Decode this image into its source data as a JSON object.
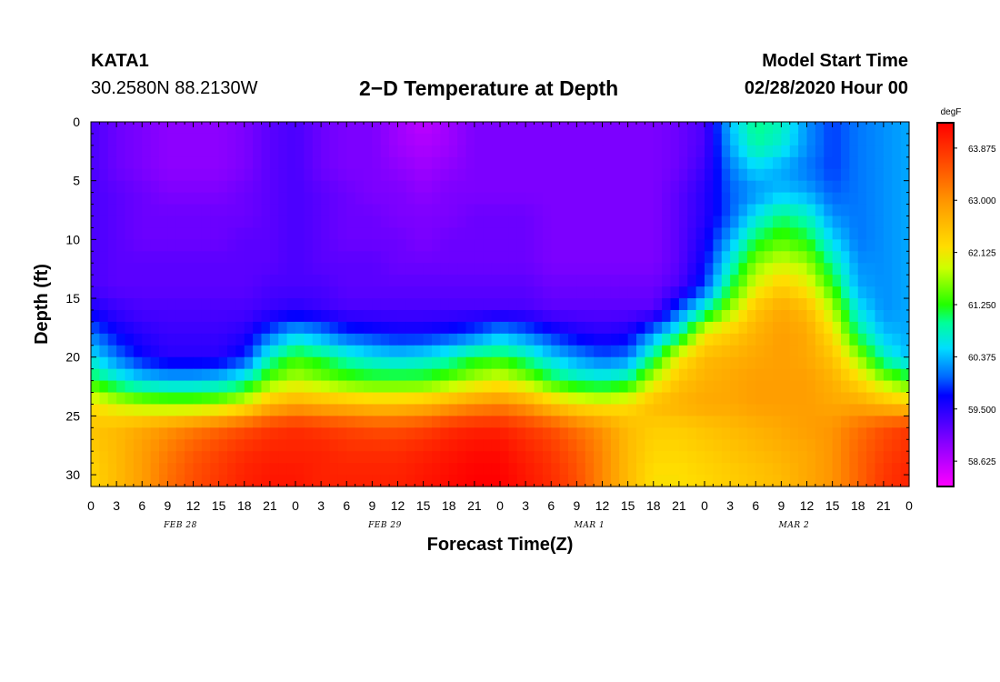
{
  "header": {
    "station": "KATA1",
    "coords": "30.2580N 88.2130W",
    "title": "2−D Temperature at Depth",
    "start_label": "Model Start Time",
    "start_time": "02/28/2020 Hour 00"
  },
  "chart_data": {
    "type": "heatmap",
    "title": "2−D Temperature at Depth",
    "xlabel": "Forecast Time(Z)",
    "ylabel": "Depth (ft)",
    "units": "degF",
    "x_tick_labels": [
      "0",
      "3",
      "6",
      "9",
      "12",
      "15",
      "18",
      "21",
      "0",
      "3",
      "6",
      "9",
      "12",
      "15",
      "18",
      "21",
      "0",
      "3",
      "6",
      "9",
      "12",
      "15",
      "18",
      "21",
      "0",
      "3",
      "6",
      "9",
      "12",
      "15",
      "18",
      "21",
      "0"
    ],
    "x_hours_range": [
      0,
      96
    ],
    "date_labels": [
      {
        "label": "FEB 28",
        "hour": 10.5
      },
      {
        "label": "FEB 29",
        "hour": 34.5
      },
      {
        "label": "MAR 1",
        "hour": 58.5
      },
      {
        "label": "MAR 2",
        "hour": 82.5
      }
    ],
    "y_ticks": [
      0,
      5,
      10,
      15,
      20,
      25,
      30
    ],
    "ylim": [
      0,
      31
    ],
    "y_inverted": true,
    "colorbar": {
      "label": "degF",
      "min": 58.2,
      "max": 64.3,
      "ticks": [
        "63.875",
        "63.000",
        "62.125",
        "61.250",
        "60.375",
        "59.500",
        "58.625"
      ],
      "tick_values": [
        63.875,
        63.0,
        62.125,
        61.25,
        60.375,
        59.5,
        58.625
      ],
      "stops": [
        {
          "t": 0.0,
          "color": "#ff00ff"
        },
        {
          "t": 0.12,
          "color": "#8800ff"
        },
        {
          "t": 0.25,
          "color": "#0000ff"
        },
        {
          "t": 0.3,
          "color": "#0066ff"
        },
        {
          "t": 0.38,
          "color": "#00ddff"
        },
        {
          "t": 0.45,
          "color": "#00ff99"
        },
        {
          "t": 0.5,
          "color": "#22ff00"
        },
        {
          "t": 0.6,
          "color": "#ccff00"
        },
        {
          "t": 0.66,
          "color": "#ffdd00"
        },
        {
          "t": 0.78,
          "color": "#ff9900"
        },
        {
          "t": 0.9,
          "color": "#ff4400"
        },
        {
          "t": 1.0,
          "color": "#ff0000"
        }
      ]
    },
    "description_grid": {
      "note": "approximate temperature (degF) field, columns = forecast hour, rows = depth (ft)",
      "hours": [
        0,
        3,
        6,
        9,
        12,
        15,
        18,
        21,
        24,
        27,
        30,
        33,
        36,
        39,
        42,
        45,
        48,
        51,
        54,
        57,
        60,
        63,
        66,
        69,
        72,
        75,
        78,
        81,
        84,
        87,
        90,
        93,
        96
      ],
      "depths": [
        0,
        2,
        4,
        6,
        8,
        10,
        12,
        14,
        16,
        18,
        20,
        22,
        24,
        26,
        28,
        30,
        31
      ],
      "values": [
        [
          59.3,
          59.1,
          59.0,
          58.9,
          58.9,
          58.9,
          59.0,
          59.2,
          59.3,
          59.1,
          59.0,
          59.0,
          58.8,
          58.6,
          58.8,
          59.0,
          59.0,
          59.0,
          59.0,
          59.0,
          59.0,
          59.0,
          59.0,
          59.1,
          59.3,
          60.4,
          61.0,
          60.8,
          60.2,
          59.9,
          60.1,
          60.2,
          60.3
        ],
        [
          59.3,
          59.1,
          59.0,
          58.9,
          58.9,
          58.9,
          59.0,
          59.2,
          59.3,
          59.1,
          59.0,
          59.0,
          58.8,
          58.7,
          58.8,
          59.0,
          59.0,
          59.0,
          59.0,
          59.0,
          59.0,
          59.0,
          59.0,
          59.1,
          59.3,
          60.3,
          60.9,
          60.7,
          60.2,
          59.9,
          60.1,
          60.2,
          60.3
        ],
        [
          59.3,
          59.1,
          59.0,
          58.9,
          58.9,
          58.9,
          59.0,
          59.2,
          59.3,
          59.1,
          59.0,
          59.0,
          58.9,
          58.8,
          58.9,
          59.0,
          59.0,
          59.0,
          59.0,
          59.0,
          59.0,
          59.0,
          59.0,
          59.1,
          59.4,
          60.1,
          60.5,
          60.3,
          60.1,
          59.9,
          60.1,
          60.2,
          60.3
        ],
        [
          59.3,
          59.2,
          59.1,
          59.0,
          59.0,
          59.0,
          59.1,
          59.2,
          59.3,
          59.2,
          59.1,
          59.0,
          59.0,
          58.9,
          59.0,
          59.0,
          59.0,
          59.0,
          59.0,
          59.0,
          59.0,
          59.0,
          59.0,
          59.2,
          59.5,
          60.0,
          60.2,
          60.4,
          60.3,
          60.0,
          60.1,
          60.2,
          60.3
        ],
        [
          59.3,
          59.2,
          59.1,
          59.1,
          59.1,
          59.1,
          59.1,
          59.2,
          59.3,
          59.2,
          59.1,
          59.1,
          59.0,
          59.0,
          59.0,
          59.1,
          59.1,
          59.1,
          59.0,
          59.0,
          59.0,
          59.0,
          59.0,
          59.2,
          59.5,
          60.0,
          60.6,
          61.0,
          60.8,
          60.2,
          60.1,
          60.2,
          60.3
        ],
        [
          59.3,
          59.2,
          59.1,
          59.1,
          59.1,
          59.1,
          59.2,
          59.2,
          59.3,
          59.2,
          59.1,
          59.1,
          59.1,
          59.0,
          59.1,
          59.1,
          59.1,
          59.1,
          59.0,
          59.0,
          59.0,
          59.0,
          59.0,
          59.2,
          59.6,
          60.3,
          61.1,
          61.4,
          61.2,
          60.5,
          60.1,
          60.2,
          60.3
        ],
        [
          59.3,
          59.2,
          59.2,
          59.2,
          59.2,
          59.2,
          59.2,
          59.2,
          59.3,
          59.2,
          59.2,
          59.2,
          59.1,
          59.1,
          59.1,
          59.1,
          59.1,
          59.1,
          59.0,
          59.0,
          59.0,
          59.0,
          59.0,
          59.2,
          59.7,
          60.7,
          61.6,
          61.9,
          61.7,
          60.9,
          60.2,
          60.2,
          60.3
        ],
        [
          59.3,
          59.2,
          59.2,
          59.2,
          59.2,
          59.2,
          59.2,
          59.3,
          59.3,
          59.3,
          59.2,
          59.2,
          59.2,
          59.2,
          59.2,
          59.2,
          59.2,
          59.2,
          59.1,
          59.1,
          59.1,
          59.1,
          59.1,
          59.3,
          59.9,
          61.1,
          62.0,
          62.4,
          62.1,
          61.3,
          60.3,
          60.2,
          60.3
        ],
        [
          59.6,
          59.4,
          59.3,
          59.3,
          59.3,
          59.3,
          59.3,
          59.4,
          59.5,
          59.4,
          59.3,
          59.3,
          59.3,
          59.3,
          59.3,
          59.3,
          59.3,
          59.3,
          59.2,
          59.2,
          59.2,
          59.2,
          59.2,
          60.0,
          60.8,
          61.7,
          62.5,
          62.8,
          62.6,
          61.8,
          60.6,
          60.2,
          60.3
        ],
        [
          60.1,
          59.7,
          59.5,
          59.4,
          59.4,
          59.4,
          59.5,
          60.0,
          60.4,
          60.2,
          59.9,
          59.8,
          59.7,
          59.7,
          59.8,
          60.0,
          60.3,
          60.1,
          59.8,
          59.6,
          59.5,
          59.6,
          60.2,
          60.8,
          62.1,
          62.4,
          62.7,
          62.9,
          62.8,
          62.2,
          61.0,
          60.4,
          60.3
        ],
        [
          60.6,
          60.1,
          59.7,
          59.5,
          59.5,
          59.5,
          59.8,
          60.8,
          61.3,
          61.1,
          60.8,
          60.6,
          60.5,
          60.6,
          60.8,
          61.1,
          61.2,
          60.9,
          60.5,
          60.2,
          60.0,
          60.1,
          61.0,
          62.1,
          62.6,
          62.7,
          62.8,
          62.9,
          62.8,
          62.5,
          61.7,
          60.8,
          60.4
        ],
        [
          61.2,
          60.8,
          60.5,
          60.4,
          60.4,
          60.5,
          60.8,
          61.5,
          61.8,
          61.6,
          61.4,
          61.3,
          61.3,
          61.3,
          61.5,
          61.8,
          62.0,
          61.7,
          61.2,
          60.9,
          60.8,
          61.0,
          61.9,
          62.5,
          62.7,
          62.8,
          62.9,
          62.9,
          62.9,
          62.7,
          62.3,
          61.7,
          61.3
        ],
        [
          62.2,
          61.9,
          61.7,
          61.6,
          61.6,
          61.7,
          62.0,
          62.6,
          62.8,
          62.7,
          62.6,
          62.5,
          62.5,
          62.6,
          62.8,
          63.0,
          63.1,
          62.9,
          62.5,
          62.2,
          62.1,
          62.2,
          62.6,
          62.7,
          62.8,
          62.8,
          62.9,
          62.9,
          62.9,
          62.8,
          62.8,
          62.6,
          62.4
        ],
        [
          62.5,
          62.6,
          62.8,
          63.0,
          63.2,
          63.4,
          63.6,
          63.8,
          63.9,
          63.8,
          63.7,
          63.6,
          63.6,
          63.7,
          63.9,
          64.0,
          64.0,
          63.8,
          63.6,
          63.3,
          63.0,
          62.6,
          62.4,
          62.4,
          62.5,
          62.6,
          62.7,
          62.8,
          62.9,
          63.0,
          63.3,
          63.6,
          63.8
        ],
        [
          62.4,
          62.6,
          62.9,
          63.2,
          63.5,
          63.7,
          63.9,
          64.0,
          64.0,
          64.0,
          63.9,
          63.9,
          63.9,
          64.0,
          64.1,
          64.2,
          64.2,
          64.0,
          63.8,
          63.5,
          63.1,
          62.6,
          62.3,
          62.3,
          62.4,
          62.5,
          62.6,
          62.7,
          62.8,
          63.0,
          63.4,
          63.7,
          63.9
        ],
        [
          62.3,
          62.6,
          62.9,
          63.3,
          63.6,
          63.8,
          64.0,
          64.1,
          64.1,
          64.0,
          64.0,
          64.0,
          64.0,
          64.1,
          64.2,
          64.3,
          64.3,
          64.1,
          63.9,
          63.6,
          63.1,
          62.6,
          62.2,
          62.2,
          62.3,
          62.4,
          62.5,
          62.6,
          62.8,
          63.0,
          63.4,
          63.8,
          64.0
        ],
        [
          62.3,
          62.6,
          62.9,
          63.3,
          63.6,
          63.8,
          64.0,
          64.1,
          64.1,
          64.0,
          64.0,
          64.0,
          64.0,
          64.1,
          64.2,
          64.3,
          64.3,
          64.1,
          63.9,
          63.6,
          63.1,
          62.6,
          62.2,
          62.2,
          62.3,
          62.4,
          62.5,
          62.6,
          62.8,
          63.0,
          63.4,
          63.8,
          64.0
        ]
      ]
    }
  }
}
